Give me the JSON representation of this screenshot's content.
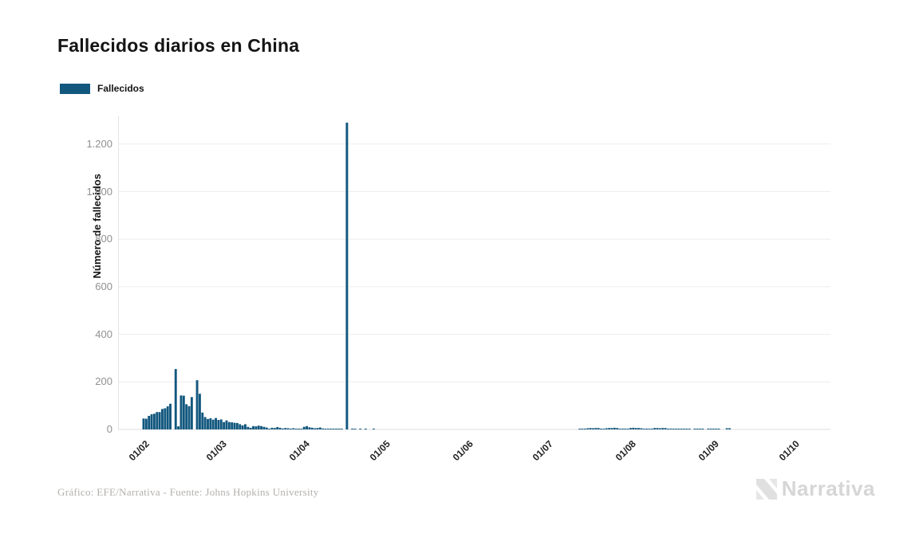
{
  "header": {
    "title": "Fallecidos diarios en China"
  },
  "legend": {
    "label": "Fallecidos",
    "swatch_color": "#12577e"
  },
  "footer": {
    "credit": "Gráfico: EFE/Narrativa - Fuente: Johns Hopkins University",
    "logo_text": "Narrativa"
  },
  "chart_data": {
    "type": "bar",
    "title": "Fallecidos diarios en China",
    "series_name": "Fallecidos",
    "ylabel": "Número de fallecidos",
    "xlabel": "",
    "grid": "horizontal",
    "legend_position": "top-left",
    "bar_color": "#12577e",
    "grid_color": "#ededed",
    "axis_line_color": "#dedede",
    "ylim": [
      0,
      1320
    ],
    "y_ticks": [
      0,
      200,
      400,
      600,
      800,
      1000,
      1200
    ],
    "y_tick_labels": [
      "0",
      "200",
      "400",
      "600",
      "800",
      "1.000",
      "1.200"
    ],
    "x_tick_labels": [
      "01/02",
      "01/03",
      "01/04",
      "01/05",
      "01/06",
      "01/07",
      "01/08",
      "01/09",
      "01/10"
    ],
    "x_tick_day_index": [
      0,
      29,
      60,
      90,
      121,
      151,
      182,
      213,
      243
    ],
    "x_start_label": "01/02",
    "peak_value": 1290,
    "peak_day_index": 76,
    "values": [
      46,
      45,
      57,
      64,
      66,
      73,
      73,
      86,
      89,
      97,
      108,
      0,
      254,
      13,
      143,
      142,
      106,
      98,
      136,
      0,
      207,
      150,
      71,
      52,
      44,
      47,
      41,
      48,
      40,
      42,
      31,
      38,
      31,
      30,
      28,
      27,
      22,
      17,
      22,
      11,
      7,
      14,
      13,
      16,
      14,
      11,
      8,
      3,
      7,
      6,
      10,
      7,
      4,
      6,
      5,
      3,
      5,
      3,
      2,
      1,
      11,
      14,
      9,
      7,
      5,
      6,
      8,
      4,
      3,
      2,
      2,
      1,
      2,
      1,
      3,
      0,
      1290,
      0,
      1,
      2,
      0,
      1,
      0,
      1,
      0,
      0,
      1,
      0,
      0,
      0,
      0,
      0,
      0,
      0,
      0,
      0,
      0,
      0,
      0,
      0,
      0,
      0,
      0,
      0,
      0,
      0,
      0,
      0,
      0,
      0,
      0,
      0,
      0,
      0,
      0,
      0,
      0,
      0,
      0,
      0,
      0,
      0,
      0,
      0,
      0,
      0,
      0,
      0,
      0,
      0,
      0,
      0,
      0,
      0,
      0,
      0,
      0,
      0,
      0,
      0,
      0,
      0,
      0,
      0,
      0,
      0,
      0,
      0,
      0,
      0,
      0,
      0,
      0,
      0,
      0,
      0,
      0,
      0,
      0,
      0,
      0,
      0,
      0,
      2,
      1,
      2,
      5,
      6,
      5,
      6,
      6,
      1,
      2,
      5,
      6,
      6,
      7,
      6,
      3,
      1,
      2,
      2,
      6,
      7,
      6,
      6,
      5,
      2,
      1,
      2,
      2,
      6,
      6,
      5,
      6,
      6,
      2,
      1,
      2,
      2,
      1,
      2,
      2,
      1,
      1,
      0,
      1,
      2,
      1,
      1,
      0,
      1,
      2,
      2,
      2,
      1,
      0,
      0,
      5,
      5,
      0,
      0,
      0,
      0,
      0,
      0,
      0,
      0,
      0,
      0,
      0,
      0,
      0,
      0,
      0,
      0,
      0,
      0,
      0,
      0,
      0,
      0,
      0
    ]
  }
}
